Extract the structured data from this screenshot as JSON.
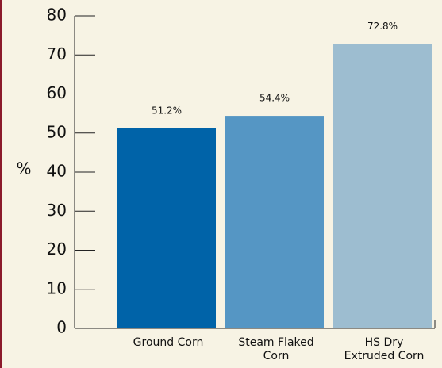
{
  "chart_data": {
    "type": "bar",
    "ylabel": "%",
    "categories": [
      "Ground Corn",
      "Steam Flaked Corn",
      "HS Dry Extruded Corn"
    ],
    "values": [
      51.2,
      54.4,
      72.8
    ],
    "value_labels": [
      "51.2%",
      "54.4%",
      "72.8%"
    ],
    "colors": [
      "#0063a8",
      "#5596c4",
      "#9dbdd0"
    ],
    "ylim": [
      0,
      80
    ],
    "yticks": [
      0,
      10,
      20,
      30,
      40,
      50,
      60,
      70,
      80
    ]
  }
}
